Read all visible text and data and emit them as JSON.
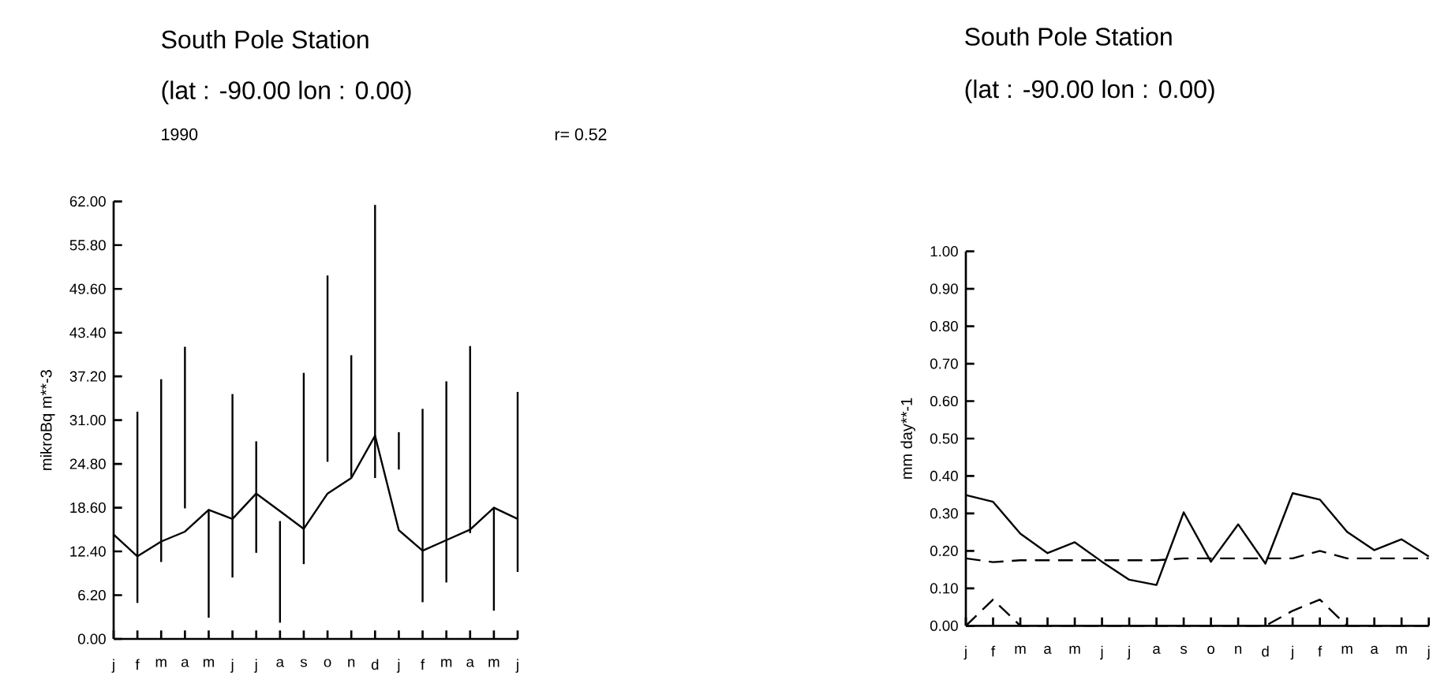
{
  "chart_data": [
    {
      "type": "line",
      "title": "South Pole Station",
      "subtitle": "(lat : -90.00 lon : 0.00)",
      "annotations": [
        "1990",
        "r= 0.52"
      ],
      "ylabel": "mikroBq m**-3",
      "color": "#000000",
      "categories": [
        "j",
        "f",
        "m",
        "a",
        "m",
        "j",
        "j",
        "a",
        "s",
        "o",
        "n",
        "d",
        "j",
        "f",
        "m",
        "a",
        "m",
        "j"
      ],
      "values": [
        14.8,
        11.7,
        13.8,
        15.2,
        18.3,
        17.0,
        20.6,
        18.1,
        15.6,
        20.6,
        22.8,
        28.8,
        15.4,
        12.5,
        14.0,
        15.5,
        18.6,
        17.0
      ],
      "errors": [
        null,
        [
          5.1,
          32.2
        ],
        [
          10.9,
          36.8
        ],
        [
          18.5,
          41.4
        ],
        [
          3.0,
          18.3
        ],
        [
          8.7,
          34.7
        ],
        [
          12.2,
          28.0
        ],
        [
          2.3,
          16.7
        ],
        [
          10.6,
          37.7
        ],
        [
          25.1,
          51.5
        ],
        [
          22.8,
          40.2
        ],
        [
          22.8,
          61.5
        ],
        [
          24.0,
          29.3
        ],
        [
          5.2,
          32.6
        ],
        [
          8.0,
          36.5
        ],
        [
          15.0,
          41.5
        ],
        [
          4.0,
          18.6
        ],
        [
          9.5,
          35.0
        ]
      ],
      "ylim": [
        0,
        62
      ],
      "yticks": [
        {
          "value": 0,
          "label": "0.00"
        },
        {
          "value": 6.2,
          "label": "6.20"
        },
        {
          "value": 12.4,
          "label": "12.40"
        },
        {
          "value": 18.6,
          "label": "18.60"
        },
        {
          "value": 24.8,
          "label": "24.80"
        },
        {
          "value": 31,
          "label": "31.00"
        },
        {
          "value": 37.2,
          "label": "37.20"
        },
        {
          "value": 43.4,
          "label": "43.40"
        },
        {
          "value": 49.6,
          "label": "49.60"
        },
        {
          "value": 55.8,
          "label": "55.80"
        },
        {
          "value": 62,
          "label": "62.00"
        }
      ]
    },
    {
      "type": "line",
      "title": "South Pole Station",
      "subtitle": "(lat : -90.00 lon : 0.00)",
      "ylabel": "mm day**-1",
      "categories": [
        "j",
        "f",
        "m",
        "a",
        "m",
        "j",
        "j",
        "a",
        "s",
        "o",
        "n",
        "d",
        "j",
        "f",
        "m",
        "a",
        "m",
        "j"
      ],
      "series": [
        {
          "color": "#000000",
          "line_style": "solid",
          "values": [
            0.349,
            0.331,
            0.246,
            0.194,
            0.223,
            0.171,
            0.123,
            0.109,
            0.303,
            0.171,
            0.271,
            0.166,
            0.354,
            0.337,
            0.251,
            0.202,
            0.231,
            0.185
          ]
        },
        {
          "color": "#000000",
          "line_style": "dashed",
          "values": [
            0.18,
            0.17,
            0.175,
            0.175,
            0.175,
            0.175,
            0.175,
            0.175,
            0.18,
            0.18,
            0.18,
            0.18,
            0.18,
            0.2,
            0.18,
            0.18,
            0.18,
            0.18
          ]
        },
        {
          "color": "#000000",
          "line_style": "dashed",
          "values": [
            0,
            0.07,
            0,
            0,
            0,
            0,
            0,
            0,
            0,
            0,
            0,
            0,
            0.04,
            0.07,
            0,
            0,
            0,
            0
          ]
        }
      ],
      "ylim": [
        0,
        1
      ],
      "yticks": [
        {
          "value": 0,
          "label": "0.00"
        },
        {
          "value": 0.1,
          "label": "0.10"
        },
        {
          "value": 0.2,
          "label": "0.20"
        },
        {
          "value": 0.3,
          "label": "0.30"
        },
        {
          "value": 0.4,
          "label": "0.40"
        },
        {
          "value": 0.5,
          "label": "0.50"
        },
        {
          "value": 0.6,
          "label": "0.60"
        },
        {
          "value": 0.7,
          "label": "0.70"
        },
        {
          "value": 0.8,
          "label": "0.80"
        },
        {
          "value": 0.9,
          "label": "0.90"
        },
        {
          "value": 1,
          "label": "1.00"
        }
      ]
    }
  ]
}
